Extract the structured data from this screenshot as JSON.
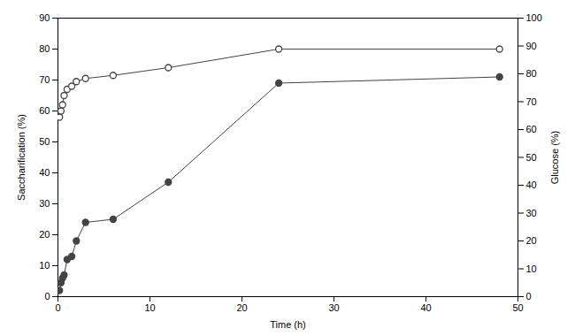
{
  "chart_data": {
    "type": "line",
    "xlabel": "Time (h)",
    "ylabel": "Saccharification (%)",
    "y2label": "Glucose (%)",
    "x": [
      0.17,
      0.33,
      0.5,
      0.67,
      1.0,
      1.5,
      2.0,
      3.0,
      6.0,
      12.0,
      24.0,
      48.0
    ],
    "series": [
      {
        "color": "#444444",
        "marker": "open circle",
        "values": [
          58,
          60,
          62,
          65,
          67,
          68,
          69.5,
          70.5,
          71.5,
          74,
          80,
          80
        ]
      },
      {
        "color": "#444444",
        "marker": "circle",
        "values": [
          2,
          4.5,
          6,
          7,
          12,
          13,
          18,
          24,
          25,
          37,
          69,
          71
        ]
      }
    ],
    "xlim": [
      0,
      50
    ],
    "xticks": [
      0,
      10,
      20,
      30,
      40,
      50
    ],
    "ylim": [
      0,
      90
    ],
    "yticks": [
      0,
      10,
      20,
      30,
      40,
      50,
      60,
      70,
      80,
      90
    ],
    "y2lim": [
      0,
      100
    ],
    "y2ticks": [
      0,
      10,
      20,
      30,
      40,
      50,
      60,
      70,
      80,
      90,
      100
    ],
    "grid": false
  }
}
